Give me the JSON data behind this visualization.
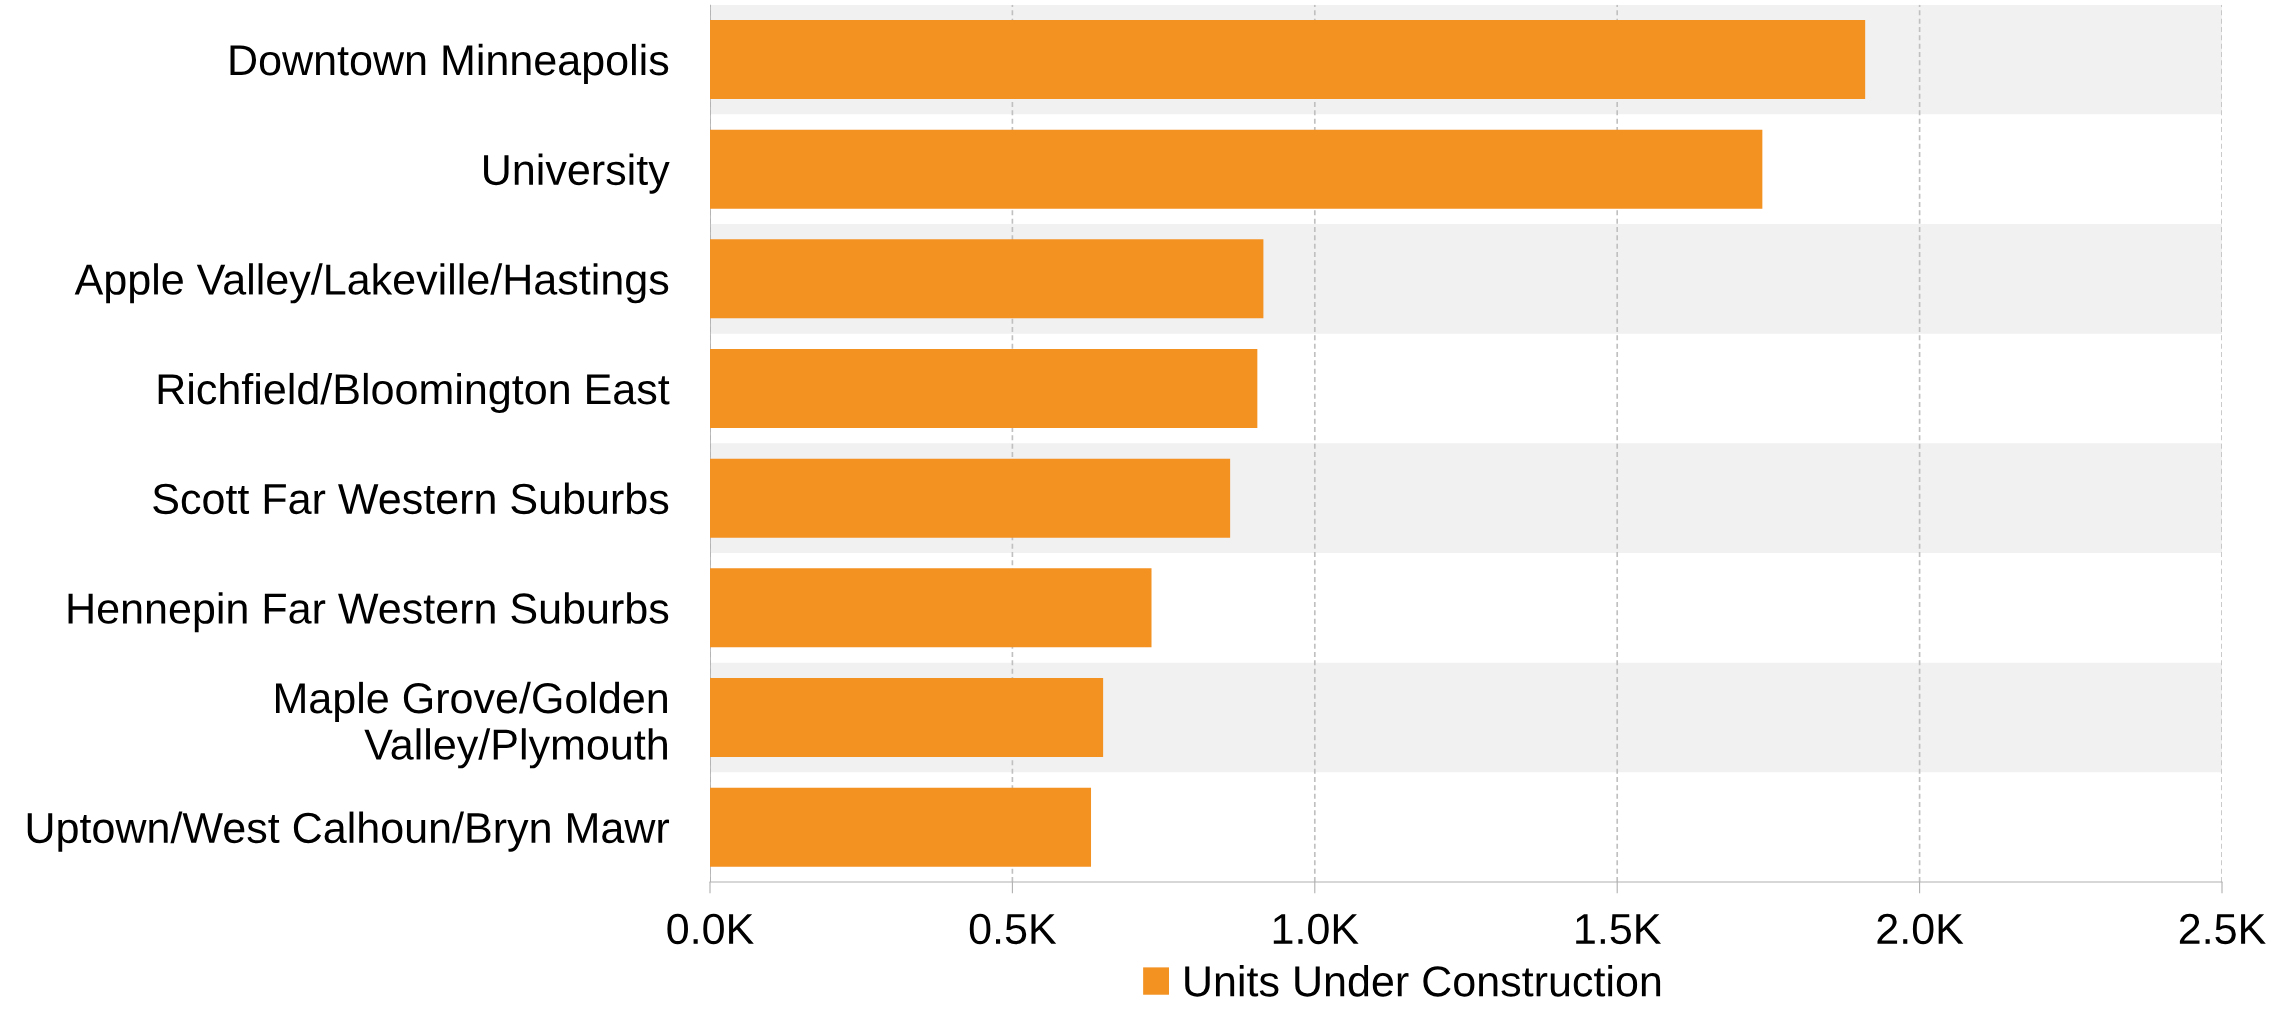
{
  "chart_data": {
    "type": "bar",
    "orientation": "horizontal",
    "categories": [
      "Downtown Minneapolis",
      "University",
      "Apple Valley/Lakeville/Hastings",
      "Richfield/Bloomington East",
      "Scott Far Western Suburbs",
      "Hennepin Far Western Suburbs",
      "Maple Grove/Golden\nValley/Plymouth",
      "Uptown/West Calhoun/Bryn Mawr"
    ],
    "series": [
      {
        "name": "Units Under Construction",
        "color": "#f39121",
        "values": [
          1.91,
          1.74,
          0.915,
          0.905,
          0.86,
          0.73,
          0.65,
          0.63
        ]
      }
    ],
    "xlim": [
      0,
      2.5
    ],
    "xticks": [
      {
        "value": 0,
        "label": "0.0K"
      },
      {
        "value": 0.5,
        "label": "0.5K"
      },
      {
        "value": 1.0,
        "label": "1.0K"
      },
      {
        "value": 1.5,
        "label": "1.5K"
      },
      {
        "value": 2.0,
        "label": "2.0K"
      },
      {
        "value": 2.5,
        "label": "2.5K"
      }
    ],
    "bands": [
      {
        "axis": "y",
        "from": "Downtown Minneapolis",
        "to": "Downtown Minneapolis",
        "color": "#f1f1f1"
      },
      {
        "axis": "y",
        "from": "Apple Valley/Lakeville/Hastings",
        "to": "Apple Valley/Lakeville/Hastings",
        "color": "#f1f1f1"
      },
      {
        "axis": "y",
        "from": "Scott Far Western Suburbs",
        "to": "Scott Far Western Suburbs",
        "color": "#f1f1f1"
      },
      {
        "axis": "y",
        "from": "Maple Grove/Golden\nValley/Plymouth",
        "to": "Maple Grove/Golden\nValley/Plymouth",
        "color": "#f1f1f1"
      }
    ],
    "grid": "x",
    "legend": "bottom"
  }
}
